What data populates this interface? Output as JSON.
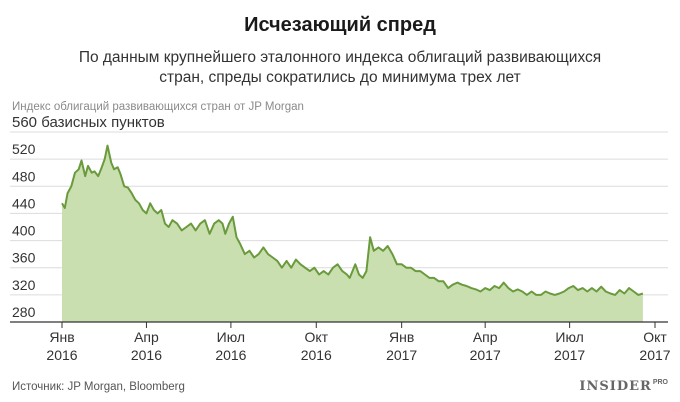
{
  "header": {
    "title": "Исчезающий спред",
    "subtitle_line1": "По данным крупнейшего эталонного индекса облигаций развивающихся",
    "subtitle_line2": "стран, спреды сократились до минимума трех лет"
  },
  "footer": {
    "source": "Источник: JP Morgan, Bloomberg",
    "brand": "INSIDER",
    "brand_sup": "PRO"
  },
  "chart_data": {
    "type": "area",
    "series_label": "Индекс облигаций развивающихся стран от JP Morgan",
    "ylabel_top": "560 базисных пунктов",
    "ylim": [
      280,
      560
    ],
    "yticks": [
      280,
      320,
      360,
      400,
      440,
      480,
      520
    ],
    "xlim": [
      "2016-01-01",
      "2017-10-01"
    ],
    "xticks": [
      {
        "date": "2016-01-01",
        "line1": "Янв",
        "line2": "2016"
      },
      {
        "date": "2016-04-01",
        "line1": "Апр",
        "line2": "2016"
      },
      {
        "date": "2016-07-01",
        "line1": "Июл",
        "line2": "2016"
      },
      {
        "date": "2016-10-01",
        "line1": "Окт",
        "line2": "2016"
      },
      {
        "date": "2017-01-01",
        "line1": "Янв",
        "line2": "2017"
      },
      {
        "date": "2017-04-01",
        "line1": "Апр",
        "line2": "2017"
      },
      {
        "date": "2017-07-01",
        "line1": "Июл",
        "line2": "2017"
      },
      {
        "date": "2017-10-01",
        "line1": "Окт",
        "line2": "2017"
      }
    ],
    "grid": true,
    "colors": {
      "line": "#6a9a3c",
      "fill": "#c9dfb0",
      "grid": "#dcdcdc",
      "axis": "#333333"
    },
    "series": [
      {
        "x": [
          "2016-01-01",
          "2016-01-04",
          "2016-01-07",
          "2016-01-11",
          "2016-01-15",
          "2016-01-19",
          "2016-01-22",
          "2016-01-26",
          "2016-01-29",
          "2016-02-02",
          "2016-02-05",
          "2016-02-09",
          "2016-02-12",
          "2016-02-16",
          "2016-02-19",
          "2016-02-23",
          "2016-02-26",
          "2016-03-01",
          "2016-03-04",
          "2016-03-08",
          "2016-03-12",
          "2016-03-16",
          "2016-03-20",
          "2016-03-24",
          "2016-03-28",
          "2016-04-01",
          "2016-04-05",
          "2016-04-09",
          "2016-04-13",
          "2016-04-17",
          "2016-04-21",
          "2016-04-25",
          "2016-04-29",
          "2016-05-04",
          "2016-05-09",
          "2016-05-14",
          "2016-05-19",
          "2016-05-24",
          "2016-05-29",
          "2016-06-03",
          "2016-06-08",
          "2016-06-13",
          "2016-06-18",
          "2016-06-22",
          "2016-06-25",
          "2016-06-29",
          "2016-07-03",
          "2016-07-07",
          "2016-07-11",
          "2016-07-16",
          "2016-07-21",
          "2016-07-26",
          "2016-07-31",
          "2016-08-05",
          "2016-08-10",
          "2016-08-15",
          "2016-08-20",
          "2016-08-25",
          "2016-08-30",
          "2016-09-04",
          "2016-09-09",
          "2016-09-14",
          "2016-09-19",
          "2016-09-24",
          "2016-09-29",
          "2016-10-04",
          "2016-10-09",
          "2016-10-14",
          "2016-10-19",
          "2016-10-24",
          "2016-10-29",
          "2016-11-03",
          "2016-11-06",
          "2016-11-09",
          "2016-11-12",
          "2016-11-16",
          "2016-11-20",
          "2016-11-24",
          "2016-11-28",
          "2016-12-02",
          "2016-12-07",
          "2016-12-12",
          "2016-12-17",
          "2016-12-22",
          "2016-12-27",
          "2017-01-01",
          "2017-01-06",
          "2017-01-11",
          "2017-01-16",
          "2017-01-21",
          "2017-01-26",
          "2017-01-31",
          "2017-02-05",
          "2017-02-10",
          "2017-02-15",
          "2017-02-20",
          "2017-02-25",
          "2017-03-02",
          "2017-03-07",
          "2017-03-12",
          "2017-03-17",
          "2017-03-22",
          "2017-03-27",
          "2017-04-01",
          "2017-04-06",
          "2017-04-11",
          "2017-04-16",
          "2017-04-21",
          "2017-04-26",
          "2017-05-01",
          "2017-05-06",
          "2017-05-11",
          "2017-05-16",
          "2017-05-21",
          "2017-05-26",
          "2017-05-31",
          "2017-06-05",
          "2017-06-10",
          "2017-06-15",
          "2017-06-20",
          "2017-06-25",
          "2017-06-30",
          "2017-07-05",
          "2017-07-10",
          "2017-07-15",
          "2017-07-20",
          "2017-07-25",
          "2017-07-30",
          "2017-08-04",
          "2017-08-09",
          "2017-08-14",
          "2017-08-19",
          "2017-08-24",
          "2017-08-29",
          "2017-09-03",
          "2017-09-08",
          "2017-09-13",
          "2017-09-18"
        ],
        "values": [
          455,
          448,
          470,
          480,
          500,
          505,
          518,
          495,
          510,
          500,
          502,
          495,
          505,
          520,
          540,
          515,
          505,
          508,
          498,
          480,
          478,
          470,
          460,
          455,
          445,
          440,
          455,
          445,
          440,
          445,
          425,
          420,
          430,
          425,
          415,
          420,
          425,
          415,
          425,
          430,
          410,
          425,
          430,
          425,
          410,
          425,
          435,
          405,
          395,
          380,
          385,
          375,
          380,
          390,
          380,
          375,
          370,
          360,
          370,
          360,
          372,
          365,
          360,
          355,
          360,
          350,
          355,
          350,
          360,
          365,
          355,
          350,
          345,
          355,
          365,
          350,
          345,
          355,
          405,
          385,
          390,
          385,
          392,
          380,
          365,
          365,
          360,
          360,
          355,
          355,
          350,
          345,
          345,
          340,
          340,
          330,
          335,
          338,
          335,
          333,
          330,
          328,
          325,
          330,
          327,
          333,
          330,
          338,
          330,
          325,
          328,
          325,
          320,
          325,
          320,
          320,
          325,
          322,
          320,
          322,
          325,
          330,
          333,
          327,
          330,
          325,
          330,
          325,
          332,
          325,
          322,
          320,
          327,
          322,
          330,
          325,
          320,
          322
        ]
      }
    ]
  }
}
